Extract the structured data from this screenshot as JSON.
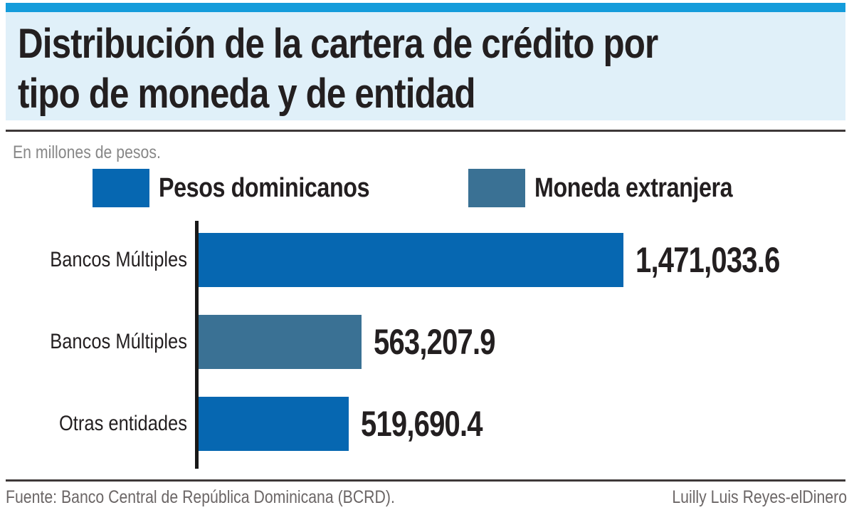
{
  "header": {
    "title_line1": "Distribución de la cartera de crédito por",
    "title_line2": "tipo de moneda y de entidad"
  },
  "chart": {
    "units_label": "En millones de pesos."
  },
  "chart_data": {
    "type": "bar",
    "orientation": "horizontal",
    "title": "Distribución de la cartera de crédito por tipo de moneda y de entidad",
    "subtitle": "En millones de pesos.",
    "categories": [
      "Bancos Múltiples",
      "Bancos Múltiples",
      "Otras entidades"
    ],
    "values": [
      1471033.6,
      563207.9,
      519690.4
    ],
    "value_labels": [
      "1,471,033.6",
      "563,207.9",
      "519,690.4"
    ],
    "row_series": [
      "Pesos dominicanos",
      "Moneda extranjera",
      "Pesos dominicanos"
    ],
    "legend": [
      {
        "label": "Pesos dominicanos",
        "color": "#0667b1"
      },
      {
        "label": "Moneda extranjera",
        "color": "#3a7194"
      }
    ],
    "xlim": [
      0,
      1471033.6
    ],
    "grid": false,
    "legend_position": "top",
    "data_labels": true
  },
  "footer": {
    "source": "Fuente: Banco Central de República Dominicana (BCRD).",
    "credit": "Luilly Luis Reyes-elDinero"
  },
  "colors": {
    "accent_bar": "#149cdb",
    "header_bg": "#e0f0f9",
    "axis_line": "#181818",
    "rule": "#3e3939"
  }
}
